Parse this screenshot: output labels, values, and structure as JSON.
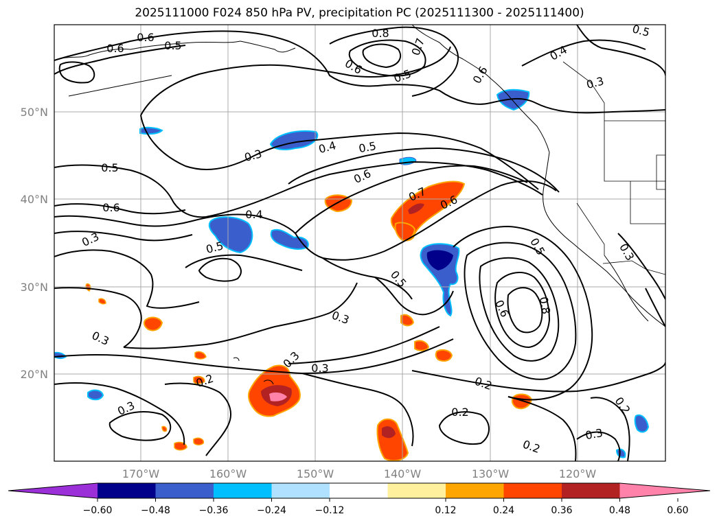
{
  "title": "2025111000 F024 850 hPa PV, precipitation PC (2025111300 - 2025111400)",
  "lat_ticks": [
    "50°N",
    "40°N",
    "30°N",
    "20°N"
  ],
  "lon_ticks": [
    "170°W",
    "160°W",
    "150°W",
    "140°W",
    "130°W",
    "120°W"
  ],
  "contour_labels": [
    {
      "id": "a",
      "text": "0.6"
    },
    {
      "id": "b",
      "text": "0.6"
    },
    {
      "id": "c",
      "text": "0.5"
    },
    {
      "id": "d",
      "text": "0.8"
    },
    {
      "id": "e",
      "text": "0.7"
    },
    {
      "id": "f",
      "text": "0.6"
    },
    {
      "id": "g",
      "text": "0.5"
    },
    {
      "id": "h",
      "text": "0.6"
    },
    {
      "id": "i",
      "text": "0.5"
    },
    {
      "id": "j",
      "text": "0.4"
    },
    {
      "id": "k",
      "text": "0.3"
    },
    {
      "id": "l",
      "text": "0.3"
    },
    {
      "id": "m",
      "text": "0.4"
    },
    {
      "id": "n",
      "text": "0.5"
    },
    {
      "id": "o",
      "text": "0.5"
    },
    {
      "id": "p",
      "text": "0.6"
    },
    {
      "id": "q",
      "text": "0.6"
    },
    {
      "id": "r",
      "text": "0.7"
    },
    {
      "id": "s",
      "text": "0.6"
    },
    {
      "id": "t",
      "text": "0.4"
    },
    {
      "id": "u",
      "text": "0.3"
    },
    {
      "id": "v",
      "text": "0.5"
    },
    {
      "id": "w",
      "text": "0.5"
    },
    {
      "id": "x",
      "text": "0.5"
    },
    {
      "id": "y",
      "text": "0.3"
    },
    {
      "id": "z",
      "text": "0.6"
    },
    {
      "id": "aa",
      "text": "0.8"
    },
    {
      "id": "ab",
      "text": "0.3"
    },
    {
      "id": "ac",
      "text": "0.3"
    },
    {
      "id": "ad",
      "text": "0.2"
    },
    {
      "id": "ae",
      "text": "0.3"
    },
    {
      "id": "af",
      "text": "0.3"
    },
    {
      "id": "ag",
      "text": "0.2"
    },
    {
      "id": "ah",
      "text": "0.2"
    },
    {
      "id": "ai",
      "text": "0.3"
    },
    {
      "id": "aj",
      "text": "0.2"
    },
    {
      "id": "ak",
      "text": "0.3"
    },
    {
      "id": "al",
      "text": "0.2"
    }
  ],
  "colorbar": {
    "ticks": [
      "−0.60",
      "−0.48",
      "−0.36",
      "−0.24",
      "−0.12",
      "0.12",
      "0.24",
      "0.36",
      "0.48",
      "0.60"
    ],
    "colors": [
      "#9b30d9",
      "#00008b",
      "#3a5fcd",
      "#00bfff",
      "#b0e2ff",
      "#ffffff",
      "#fff09e",
      "#ffa500",
      "#ff4500",
      "#b22222",
      "#ff82ab"
    ]
  },
  "colors": {
    "neg_strong": "#00008b",
    "neg_mid": "#3a5fcd",
    "neg_light": "#00bfff",
    "pos_light": "#fff09e",
    "pos_mid": "#ffa500",
    "pos_strong": "#ff4500",
    "pos_dark": "#b22222",
    "pos_max": "#ff82ab"
  }
}
